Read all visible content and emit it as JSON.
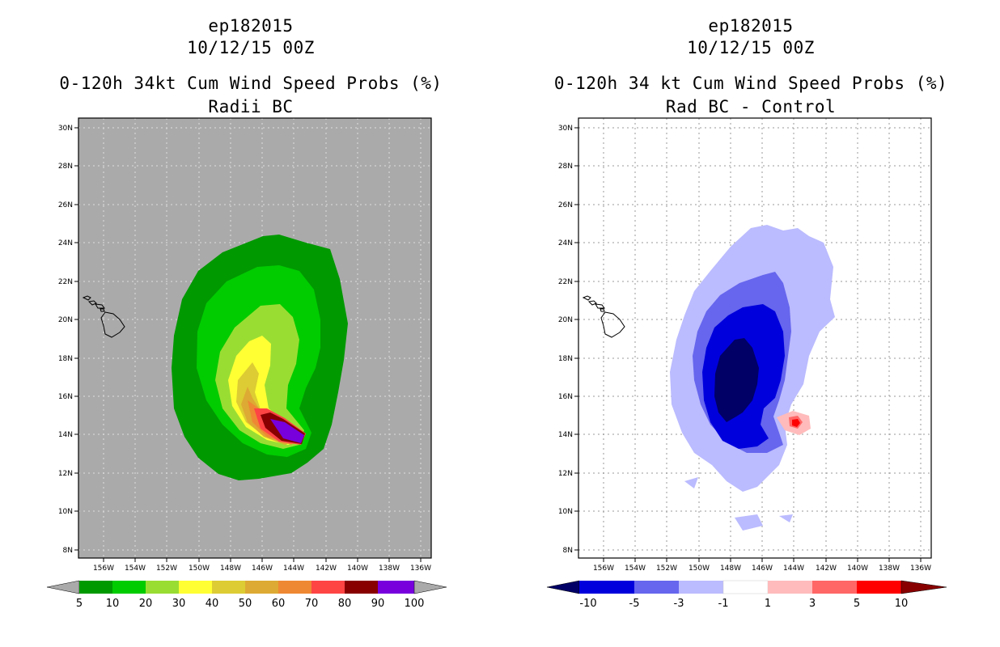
{
  "panels": [
    {
      "id": "left",
      "storm": "ep182015",
      "datetime": "10/12/15 00Z",
      "product": "0-120h 34kt Cum Wind Speed Probs (%)",
      "subtitle": "Radii BC",
      "background_color": "#aaaaaa",
      "colorbar": {
        "left_arrow_color": "#aaaaaa",
        "right_arrow_color": "#aaaaaa",
        "colors": [
          "#009900",
          "#00cc00",
          "#99dd33",
          "#ffff33",
          "#ddcc33",
          "#ddaa33",
          "#ee8833",
          "#ff4444",
          "#880000",
          "#7700dd"
        ],
        "labels": [
          "5",
          "10",
          "20",
          "30",
          "40",
          "50",
          "60",
          "70",
          "80",
          "90",
          "100"
        ]
      }
    },
    {
      "id": "right",
      "storm": "ep182015",
      "datetime": "10/12/15 00Z",
      "product": "0-120h 34 kt Cum Wind Speed Probs (%)",
      "subtitle": "Rad BC - Control",
      "background_color": "#ffffff",
      "colorbar": {
        "left_arrow_color": "#000066",
        "right_arrow_color": "#880000",
        "colors": [
          "#0000dd",
          "#6666ee",
          "#bbbbff",
          "#ffffff",
          "#ffbbbb",
          "#ff6666",
          "#ff0000"
        ],
        "labels": [
          "-10",
          "-5",
          "-3",
          "-1",
          "1",
          "3",
          "5",
          "10"
        ]
      }
    }
  ],
  "map": {
    "lat_ticks": [
      "30N",
      "28N",
      "26N",
      "24N",
      "22N",
      "20N",
      "18N",
      "16N",
      "14N",
      "12N",
      "10N",
      "8N"
    ],
    "lon_ticks": [
      "156W",
      "154W",
      "152W",
      "150W",
      "148W",
      "146W",
      "144W",
      "142W",
      "140W",
      "138W",
      "136W"
    ]
  }
}
